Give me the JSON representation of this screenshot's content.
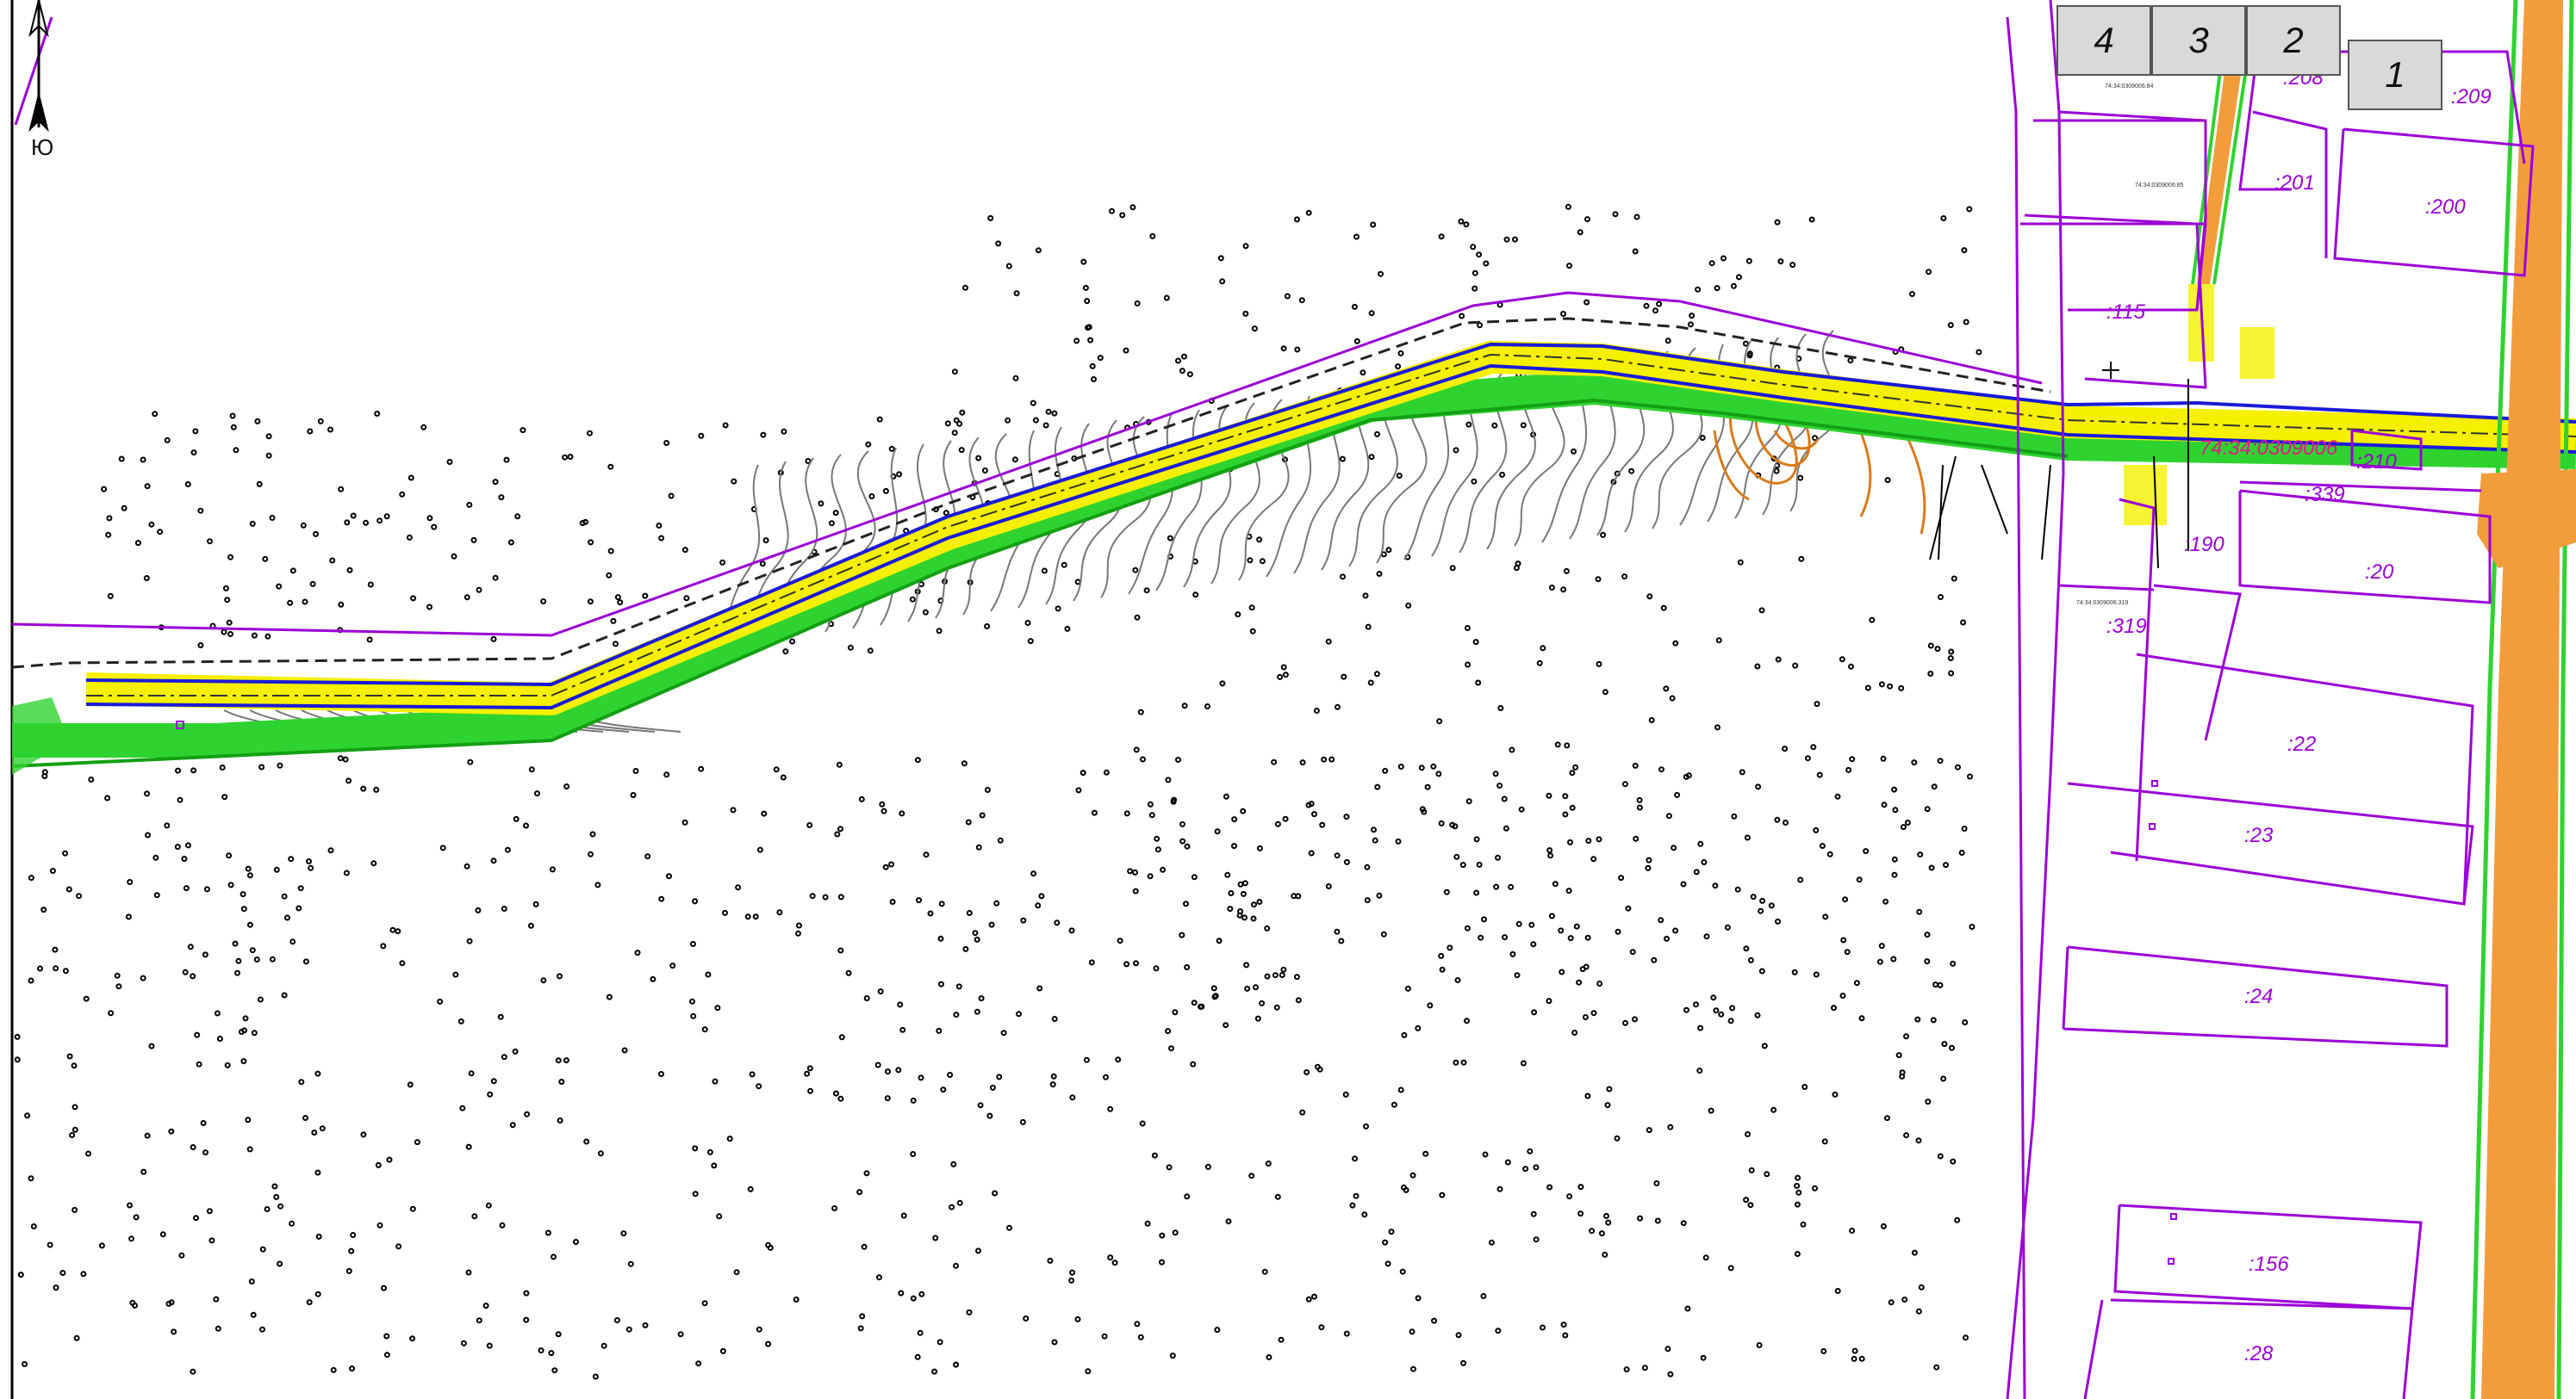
{
  "sheet_tabs": [
    {
      "label": "4"
    },
    {
      "label": "3"
    },
    {
      "label": "2"
    },
    {
      "label": "1"
    }
  ],
  "north_arrow": {
    "label": "Ю"
  },
  "cadastral": {
    "block_number": "74:34:0309006",
    "block_number_small_1": "74:34:0309006:84",
    "block_number_small_2": "74:34:0309006:85",
    "block_number_small_3": "74:34:0309006:319",
    "parcels": [
      {
        "id": "p209",
        "label": ":209"
      },
      {
        "id": "p208",
        "label": ":208"
      },
      {
        "id": "p201",
        "label": ":201"
      },
      {
        "id": "p200",
        "label": ":200"
      },
      {
        "id": "p115",
        "label": ":115"
      },
      {
        "id": "p210",
        "label": ":210"
      },
      {
        "id": "p339",
        "label": ":339"
      },
      {
        "id": "p190",
        "label": ":190"
      },
      {
        "id": "p20",
        "label": ":20"
      },
      {
        "id": "p319",
        "label": ":319"
      },
      {
        "id": "p22",
        "label": ":22"
      },
      {
        "id": "p23",
        "label": ":23"
      },
      {
        "id": "p24",
        "label": ":24"
      },
      {
        "id": "p156",
        "label": ":156"
      },
      {
        "id": "p28",
        "label": ":28"
      }
    ]
  },
  "colors": {
    "parcel": "#9b00d6",
    "block_label": "#e4168c",
    "road_yellow": "#f4f000",
    "road_blue": "#1a1ad8",
    "road_green": "#2fd32f",
    "contour": "#777777",
    "orange_contour": "#d87a1a",
    "road_orange": "#f39c3c"
  }
}
